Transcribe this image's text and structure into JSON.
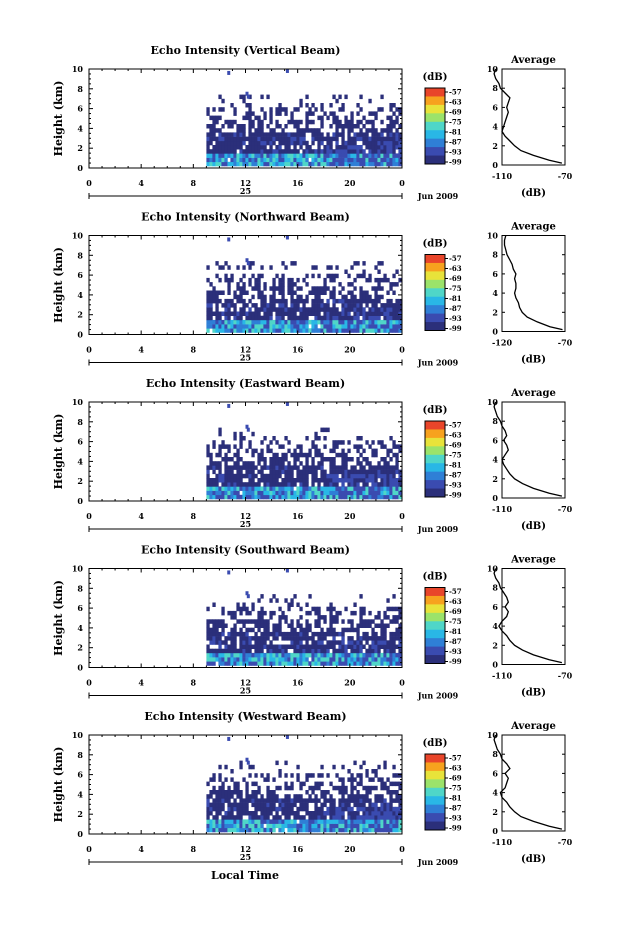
{
  "chart_data": {
    "type": "heatmap",
    "shared": {
      "xlabel": "Local Time",
      "x_ticks": [
        "0",
        "4",
        "8",
        "12",
        "16",
        "20",
        "0"
      ],
      "date_label": "25",
      "month_label": "Jun 2009",
      "ylabel": "Height (km)",
      "y_ticks": [
        "0",
        "2",
        "4",
        "6",
        "8",
        "10"
      ],
      "ylim": [
        0,
        10
      ],
      "colorbar_unit": "(dB)",
      "colorbar_ticks": [
        "-57",
        "-63",
        "-69",
        "-75",
        "-81",
        "-87",
        "-93",
        "-99"
      ],
      "colormap": [
        "#2b2f7a",
        "#3a4bb0",
        "#2f7fd6",
        "#29b7e6",
        "#4fd6c8",
        "#9be36a",
        "#e8e33a",
        "#f7a21e",
        "#e9452a"
      ],
      "avg_title": "Average",
      "avg_unit": "(dB)",
      "data_start_hour": 9
    },
    "panels": [
      {
        "title": "Echo Intensity (Vertical Beam)",
        "avg_xticks": [
          "-110",
          "-70"
        ],
        "avg_profile": {
          "height_km": [
            0.2,
            0.5,
            1,
            1.5,
            2,
            2.5,
            3,
            3.5,
            4,
            4.5,
            5,
            5.5,
            6,
            6.5,
            7,
            7.5,
            8,
            8.5,
            9,
            9.5,
            10
          ],
          "db": [
            -72,
            -80,
            -90,
            -98,
            -102,
            -105,
            -108,
            -110,
            -109,
            -108,
            -107,
            -106,
            -107,
            -106,
            -105,
            -108,
            -111,
            -112,
            -114,
            -115,
            -114
          ]
        }
      },
      {
        "title": "Echo Intensity (Northward Beam)",
        "avg_xticks": [
          "-120",
          "-70"
        ],
        "avg_profile": {
          "height_km": [
            0.2,
            0.5,
            1,
            1.5,
            2,
            2.5,
            3,
            3.5,
            4,
            4.5,
            5,
            5.5,
            6,
            6.5,
            7,
            7.5,
            8,
            8.5,
            9,
            9.5,
            10
          ],
          "db": [
            -72,
            -82,
            -92,
            -100,
            -104,
            -106,
            -107,
            -109,
            -110,
            -109,
            -109,
            -110,
            -109,
            -111,
            -112,
            -114,
            -116,
            -117,
            -118,
            -118,
            -117
          ]
        }
      },
      {
        "title": "Echo Intensity (Eastward Beam)",
        "avg_xticks": [
          "-110",
          "-70"
        ],
        "avg_profile": {
          "height_km": [
            0.2,
            0.5,
            1,
            1.5,
            2,
            2.5,
            3,
            3.5,
            4,
            4.5,
            5,
            5.5,
            6,
            6.5,
            7,
            7.5,
            8,
            8.5,
            9,
            9.5,
            10
          ],
          "db": [
            -72,
            -80,
            -90,
            -97,
            -102,
            -105,
            -107,
            -109,
            -110,
            -108,
            -106,
            -107,
            -109,
            -107,
            -108,
            -110,
            -111,
            -113,
            -114,
            -115,
            -114
          ]
        }
      },
      {
        "title": "Echo Intensity (Southward Beam)",
        "avg_xticks": [
          "-110",
          "-70"
        ],
        "avg_profile": {
          "height_km": [
            0.2,
            0.5,
            1,
            1.5,
            2,
            2.5,
            3,
            3.5,
            4,
            4.5,
            5,
            5.5,
            6,
            6.5,
            7,
            7.5,
            8,
            8.5,
            9,
            9.5,
            10
          ],
          "db": [
            -72,
            -80,
            -90,
            -97,
            -102,
            -105,
            -107,
            -110,
            -112,
            -110,
            -107,
            -106,
            -108,
            -106,
            -107,
            -109,
            -111,
            -112,
            -114,
            -115,
            -114
          ]
        }
      },
      {
        "title": "Echo Intensity (Westward Beam)",
        "avg_xticks": [
          "-110",
          "-70"
        ],
        "avg_profile": {
          "height_km": [
            0.2,
            0.5,
            1,
            1.5,
            2,
            2.5,
            3,
            3.5,
            4,
            4.5,
            5,
            5.5,
            6,
            6.5,
            7,
            7.5,
            8,
            8.5,
            9,
            9.5,
            10
          ],
          "db": [
            -72,
            -80,
            -90,
            -98,
            -102,
            -105,
            -107,
            -110,
            -111,
            -108,
            -107,
            -106,
            -108,
            -105,
            -107,
            -110,
            -111,
            -113,
            -114,
            -115,
            -114
          ]
        }
      }
    ]
  }
}
